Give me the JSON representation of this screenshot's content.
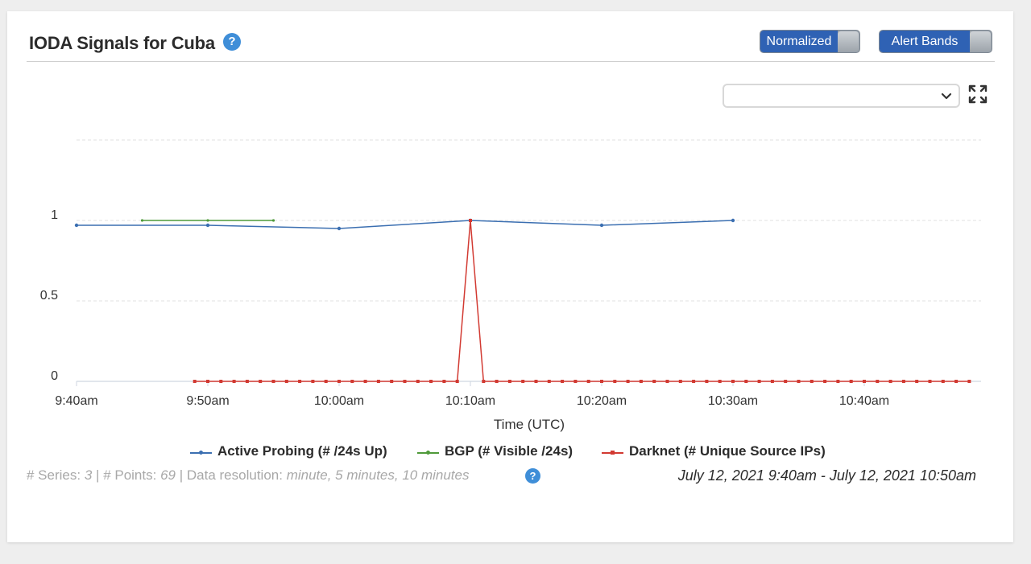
{
  "card": {
    "title": "IODA Signals for Cuba",
    "help_glyph": "?",
    "normalized_label": "Normalized",
    "alert_bands_label": "Alert Bands",
    "select_value": "",
    "select_icon": "chevron-down-icon",
    "fullscreen_icon": "expand-icon"
  },
  "footer": {
    "series_label": "# Series:",
    "series_count": "3",
    "points_label": "# Points:",
    "points_count": "69",
    "resolution_label": "Data resolution:",
    "resolution_value": "minute, 5 minutes, 10 minutes",
    "date_range": "July 12, 2021 9:40am - July 12, 2021 10:50am"
  },
  "colors": {
    "active_probing": "#3b6fb1",
    "bgp": "#4f9a3a",
    "darknet": "#d23a32",
    "grid": "#e2e2e2",
    "accent": "#2f62b4"
  },
  "chart_data": {
    "type": "line",
    "xlabel": "Time (UTC)",
    "ylabel": "",
    "x_ticks": [
      "9:40am",
      "9:50am",
      "10:00am",
      "10:10am",
      "10:20am",
      "10:30am",
      "10:40am"
    ],
    "x_range_minutes_after_9_40am": [
      0,
      69
    ],
    "y_ticks": [
      "0",
      "0.5",
      "1"
    ],
    "ylim": [
      0,
      1.5
    ],
    "grid": true,
    "legend_position": "bottom",
    "series": [
      {
        "name": "Active Probing (# /24s Up)",
        "color": "#3b6fb1",
        "x": [
          "9:40am",
          "9:50am",
          "10:00am",
          "10:10am",
          "10:20am",
          "10:30am"
        ],
        "values": [
          0.97,
          0.97,
          0.95,
          1.0,
          0.97,
          1.0
        ]
      },
      {
        "name": "BGP (# Visible /24s)",
        "color": "#4f9a3a",
        "x": [
          "9:45am",
          "9:50am",
          "9:55am"
        ],
        "values": [
          1.0,
          1.0,
          1.0
        ]
      },
      {
        "name": "Darknet (# Unique Source IPs)",
        "color": "#d23a32",
        "x_start": "9:49am",
        "x_end": "10:48am",
        "step_minutes": 1,
        "values": [
          0,
          0,
          0,
          0,
          0,
          0,
          0,
          0,
          0,
          0,
          0,
          0,
          0,
          0,
          0,
          0,
          0,
          0,
          0,
          0,
          0,
          1,
          0,
          0,
          0,
          0,
          0,
          0,
          0,
          0,
          0,
          0,
          0,
          0,
          0,
          0,
          0,
          0,
          0,
          0,
          0,
          0,
          0,
          0,
          0,
          0,
          0,
          0,
          0,
          0,
          0,
          0,
          0,
          0,
          0,
          0,
          0,
          0,
          0,
          0
        ]
      }
    ]
  }
}
